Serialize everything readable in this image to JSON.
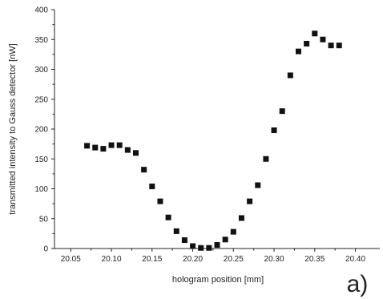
{
  "chart_data": {
    "type": "scatter",
    "title": "",
    "xlabel": "hologram position  [mm]",
    "ylabel": "transmitted intensity to Gauss detector [nW]",
    "xlim": [
      20.03,
      20.43
    ],
    "ylim": [
      0,
      400
    ],
    "xticks": [
      20.05,
      20.1,
      20.15,
      20.2,
      20.25,
      20.3,
      20.35,
      20.4
    ],
    "xtick_labels": [
      "20.05",
      "20.10",
      "20.15",
      "20.20",
      "20.25",
      "20.30",
      "20.35",
      "20.40"
    ],
    "yticks": [
      0,
      50,
      100,
      150,
      200,
      250,
      300,
      350,
      400
    ],
    "ytick_labels": [
      "0",
      "50",
      "100",
      "150",
      "200",
      "250",
      "300",
      "350",
      "400"
    ],
    "grid": false,
    "marker": "square",
    "marker_color": "#111111",
    "annotation": "a)",
    "series": [
      {
        "x": [
          20.07,
          20.08,
          20.09,
          20.1,
          20.11,
          20.12,
          20.13,
          20.14,
          20.15,
          20.16,
          20.17,
          20.18,
          20.19,
          20.2,
          20.21,
          20.22,
          20.23,
          20.24,
          20.25,
          20.26,
          20.27,
          20.28,
          20.29,
          20.3,
          20.31,
          20.32,
          20.33,
          20.34,
          20.35,
          20.36,
          20.37,
          20.38
        ],
        "y": [
          172,
          169,
          167,
          173,
          173,
          165,
          160,
          132,
          104,
          79,
          52,
          29,
          14,
          4,
          1,
          1,
          6,
          15,
          28,
          51,
          79,
          106,
          150,
          198,
          230,
          290,
          330,
          343,
          360,
          350,
          340,
          340
        ]
      }
    ]
  }
}
